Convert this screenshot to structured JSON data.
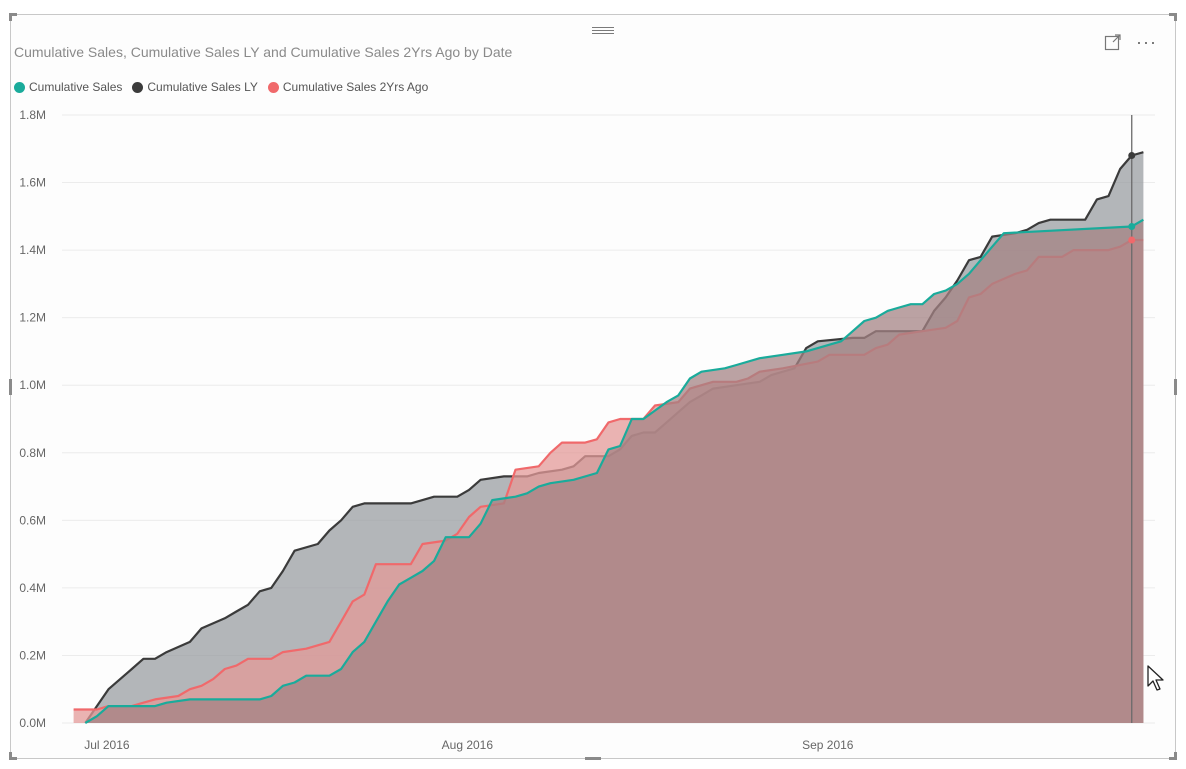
{
  "visual": {
    "title": "Cumulative Sales, Cumulative Sales LY and Cumulative Sales 2Yrs Ago by Date",
    "focus_icon": "focus-mode-icon",
    "more_icon": "more-options-icon",
    "more_glyph": "···"
  },
  "legend": [
    {
      "label": "Cumulative Sales",
      "color": "#1aab9b"
    },
    {
      "label": "Cumulative Sales LY",
      "color": "#3b3b3b"
    },
    {
      "label": "Cumulative Sales 2Yrs Ago",
      "color": "#f0696b"
    }
  ],
  "chart_data": {
    "type": "area",
    "title": "Cumulative Sales, Cumulative Sales LY and Cumulative Sales 2Yrs Ago by Date",
    "xlabel": "",
    "ylabel": "",
    "x_ticks": [
      {
        "label": "Jul 2016",
        "date": "2016-07-01"
      },
      {
        "label": "Aug 2016",
        "date": "2016-08-01"
      },
      {
        "label": "Sep 2016",
        "date": "2016-09-01"
      }
    ],
    "y_ticks": [
      "0.0M",
      "0.2M",
      "0.4M",
      "0.6M",
      "0.8M",
      "1.0M",
      "1.2M",
      "1.4M",
      "1.6M",
      "1.8M"
    ],
    "ylim": [
      0,
      1.8
    ],
    "y_unit": "M",
    "xlim": [
      "2016-06-28",
      "2016-09-30"
    ],
    "grid": true,
    "legend_position": "top-left",
    "series": [
      {
        "name": "Cumulative Sales LY",
        "color": "#3b3b3b",
        "fill": "#9a9ea2",
        "points": [
          [
            "2016-06-30",
            0.0
          ],
          [
            "2016-07-02",
            0.1
          ],
          [
            "2016-07-04",
            0.16
          ],
          [
            "2016-07-05",
            0.19
          ],
          [
            "2016-07-06",
            0.19
          ],
          [
            "2016-07-07",
            0.21
          ],
          [
            "2016-07-09",
            0.24
          ],
          [
            "2016-07-10",
            0.28
          ],
          [
            "2016-07-12",
            0.31
          ],
          [
            "2016-07-13",
            0.33
          ],
          [
            "2016-07-14",
            0.35
          ],
          [
            "2016-07-15",
            0.39
          ],
          [
            "2016-07-16",
            0.4
          ],
          [
            "2016-07-17",
            0.45
          ],
          [
            "2016-07-18",
            0.51
          ],
          [
            "2016-07-20",
            0.53
          ],
          [
            "2016-07-21",
            0.57
          ],
          [
            "2016-07-22",
            0.6
          ],
          [
            "2016-07-23",
            0.64
          ],
          [
            "2016-07-24",
            0.65
          ],
          [
            "2016-07-28",
            0.65
          ],
          [
            "2016-07-29",
            0.66
          ],
          [
            "2016-07-30",
            0.67
          ],
          [
            "2016-08-01",
            0.67
          ],
          [
            "2016-08-02",
            0.69
          ],
          [
            "2016-08-03",
            0.72
          ],
          [
            "2016-08-05",
            0.73
          ],
          [
            "2016-08-07",
            0.73
          ],
          [
            "2016-08-08",
            0.74
          ],
          [
            "2016-08-10",
            0.75
          ],
          [
            "2016-08-11",
            0.76
          ],
          [
            "2016-08-12",
            0.79
          ],
          [
            "2016-08-14",
            0.79
          ],
          [
            "2016-08-15",
            0.81
          ],
          [
            "2016-08-16",
            0.85
          ],
          [
            "2016-08-17",
            0.86
          ],
          [
            "2016-08-18",
            0.86
          ],
          [
            "2016-08-19",
            0.89
          ],
          [
            "2016-08-20",
            0.92
          ],
          [
            "2016-08-21",
            0.95
          ],
          [
            "2016-08-22",
            0.97
          ],
          [
            "2016-08-23",
            0.99
          ],
          [
            "2016-08-25",
            1.0
          ],
          [
            "2016-08-27",
            1.01
          ],
          [
            "2016-08-28",
            1.03
          ],
          [
            "2016-08-30",
            1.05
          ],
          [
            "2016-08-31",
            1.11
          ],
          [
            "2016-09-01",
            1.13
          ],
          [
            "2016-09-04",
            1.14
          ],
          [
            "2016-09-05",
            1.14
          ],
          [
            "2016-09-06",
            1.16
          ],
          [
            "2016-09-10",
            1.16
          ],
          [
            "2016-09-11",
            1.22
          ],
          [
            "2016-09-12",
            1.26
          ],
          [
            "2016-09-13",
            1.31
          ],
          [
            "2016-09-14",
            1.37
          ],
          [
            "2016-09-15",
            1.38
          ],
          [
            "2016-09-16",
            1.44
          ],
          [
            "2016-09-18",
            1.45
          ],
          [
            "2016-09-19",
            1.46
          ],
          [
            "2016-09-20",
            1.48
          ],
          [
            "2016-09-21",
            1.49
          ],
          [
            "2016-09-24",
            1.49
          ],
          [
            "2016-09-25",
            1.55
          ],
          [
            "2016-09-26",
            1.56
          ],
          [
            "2016-09-27",
            1.64
          ],
          [
            "2016-09-28",
            1.68
          ],
          [
            "2016-09-29",
            1.69
          ]
        ]
      },
      {
        "name": "Cumulative Sales 2Yrs Ago",
        "color": "#f0696b",
        "fill": "#e39a98",
        "points": [
          [
            "2016-06-29",
            0.04
          ],
          [
            "2016-07-01",
            0.04
          ],
          [
            "2016-07-02",
            0.05
          ],
          [
            "2016-07-04",
            0.05
          ],
          [
            "2016-07-05",
            0.06
          ],
          [
            "2016-07-06",
            0.07
          ],
          [
            "2016-07-08",
            0.08
          ],
          [
            "2016-07-09",
            0.1
          ],
          [
            "2016-07-10",
            0.11
          ],
          [
            "2016-07-11",
            0.13
          ],
          [
            "2016-07-12",
            0.16
          ],
          [
            "2016-07-13",
            0.17
          ],
          [
            "2016-07-14",
            0.19
          ],
          [
            "2016-07-16",
            0.19
          ],
          [
            "2016-07-17",
            0.21
          ],
          [
            "2016-07-19",
            0.22
          ],
          [
            "2016-07-20",
            0.23
          ],
          [
            "2016-07-21",
            0.24
          ],
          [
            "2016-07-22",
            0.3
          ],
          [
            "2016-07-23",
            0.36
          ],
          [
            "2016-07-24",
            0.38
          ],
          [
            "2016-07-25",
            0.47
          ],
          [
            "2016-07-28",
            0.47
          ],
          [
            "2016-07-29",
            0.53
          ],
          [
            "2016-07-31",
            0.54
          ],
          [
            "2016-08-01",
            0.56
          ],
          [
            "2016-08-02",
            0.61
          ],
          [
            "2016-08-03",
            0.64
          ],
          [
            "2016-08-05",
            0.65
          ],
          [
            "2016-08-06",
            0.75
          ],
          [
            "2016-08-08",
            0.76
          ],
          [
            "2016-08-09",
            0.8
          ],
          [
            "2016-08-10",
            0.83
          ],
          [
            "2016-08-12",
            0.83
          ],
          [
            "2016-08-13",
            0.84
          ],
          [
            "2016-08-14",
            0.89
          ],
          [
            "2016-08-15",
            0.9
          ],
          [
            "2016-08-17",
            0.9
          ],
          [
            "2016-08-18",
            0.94
          ],
          [
            "2016-08-20",
            0.95
          ],
          [
            "2016-08-21",
            0.99
          ],
          [
            "2016-08-22",
            1.0
          ],
          [
            "2016-08-23",
            1.01
          ],
          [
            "2016-08-25",
            1.01
          ],
          [
            "2016-08-26",
            1.02
          ],
          [
            "2016-08-27",
            1.04
          ],
          [
            "2016-08-29",
            1.05
          ],
          [
            "2016-09-01",
            1.07
          ],
          [
            "2016-09-02",
            1.09
          ],
          [
            "2016-09-05",
            1.09
          ],
          [
            "2016-09-06",
            1.11
          ],
          [
            "2016-09-07",
            1.12
          ],
          [
            "2016-09-08",
            1.15
          ],
          [
            "2016-09-10",
            1.16
          ],
          [
            "2016-09-12",
            1.17
          ],
          [
            "2016-09-13",
            1.19
          ],
          [
            "2016-09-14",
            1.26
          ],
          [
            "2016-09-15",
            1.27
          ],
          [
            "2016-09-16",
            1.3
          ],
          [
            "2016-09-18",
            1.33
          ],
          [
            "2016-09-19",
            1.34
          ],
          [
            "2016-09-20",
            1.38
          ],
          [
            "2016-09-22",
            1.38
          ],
          [
            "2016-09-23",
            1.4
          ],
          [
            "2016-09-26",
            1.4
          ],
          [
            "2016-09-27",
            1.41
          ],
          [
            "2016-09-28",
            1.43
          ],
          [
            "2016-09-29",
            1.43
          ]
        ]
      },
      {
        "name": "Cumulative Sales",
        "color": "#1aab9b",
        "fill": "#a48384",
        "points": [
          [
            "2016-06-30",
            0.0
          ],
          [
            "2016-07-01",
            0.02
          ],
          [
            "2016-07-02",
            0.05
          ],
          [
            "2016-07-04",
            0.05
          ],
          [
            "2016-07-05",
            0.05
          ],
          [
            "2016-07-06",
            0.05
          ],
          [
            "2016-07-07",
            0.06
          ],
          [
            "2016-07-09",
            0.07
          ],
          [
            "2016-07-15",
            0.07
          ],
          [
            "2016-07-16",
            0.08
          ],
          [
            "2016-07-17",
            0.11
          ],
          [
            "2016-07-18",
            0.12
          ],
          [
            "2016-07-19",
            0.14
          ],
          [
            "2016-07-21",
            0.14
          ],
          [
            "2016-07-22",
            0.16
          ],
          [
            "2016-07-23",
            0.21
          ],
          [
            "2016-07-24",
            0.24
          ],
          [
            "2016-07-25",
            0.3
          ],
          [
            "2016-07-26",
            0.36
          ],
          [
            "2016-07-27",
            0.41
          ],
          [
            "2016-07-28",
            0.43
          ],
          [
            "2016-07-29",
            0.45
          ],
          [
            "2016-07-30",
            0.48
          ],
          [
            "2016-07-31",
            0.55
          ],
          [
            "2016-08-02",
            0.55
          ],
          [
            "2016-08-03",
            0.59
          ],
          [
            "2016-08-04",
            0.66
          ],
          [
            "2016-08-06",
            0.67
          ],
          [
            "2016-08-07",
            0.68
          ],
          [
            "2016-08-08",
            0.7
          ],
          [
            "2016-08-09",
            0.71
          ],
          [
            "2016-08-11",
            0.72
          ],
          [
            "2016-08-13",
            0.74
          ],
          [
            "2016-08-14",
            0.81
          ],
          [
            "2016-08-15",
            0.82
          ],
          [
            "2016-08-16",
            0.9
          ],
          [
            "2016-08-17",
            0.9
          ],
          [
            "2016-08-19",
            0.95
          ],
          [
            "2016-08-20",
            0.97
          ],
          [
            "2016-08-21",
            1.02
          ],
          [
            "2016-08-22",
            1.04
          ],
          [
            "2016-08-24",
            1.05
          ],
          [
            "2016-08-25",
            1.06
          ],
          [
            "2016-08-27",
            1.08
          ],
          [
            "2016-08-29",
            1.09
          ],
          [
            "2016-08-31",
            1.1
          ],
          [
            "2016-09-02",
            1.12
          ],
          [
            "2016-09-03",
            1.13
          ],
          [
            "2016-09-04",
            1.16
          ],
          [
            "2016-09-05",
            1.19
          ],
          [
            "2016-09-06",
            1.2
          ],
          [
            "2016-09-07",
            1.22
          ],
          [
            "2016-09-08",
            1.23
          ],
          [
            "2016-09-09",
            1.24
          ],
          [
            "2016-09-10",
            1.24
          ],
          [
            "2016-09-11",
            1.27
          ],
          [
            "2016-09-12",
            1.28
          ],
          [
            "2016-09-13",
            1.3
          ],
          [
            "2016-09-14",
            1.33
          ],
          [
            "2016-09-15",
            1.37
          ],
          [
            "2016-09-16",
            1.41
          ],
          [
            "2016-09-17",
            1.45
          ],
          [
            "2016-09-28",
            1.47
          ],
          [
            "2016-09-29",
            1.49
          ]
        ]
      }
    ],
    "highlight_date": "2016-09-28"
  }
}
